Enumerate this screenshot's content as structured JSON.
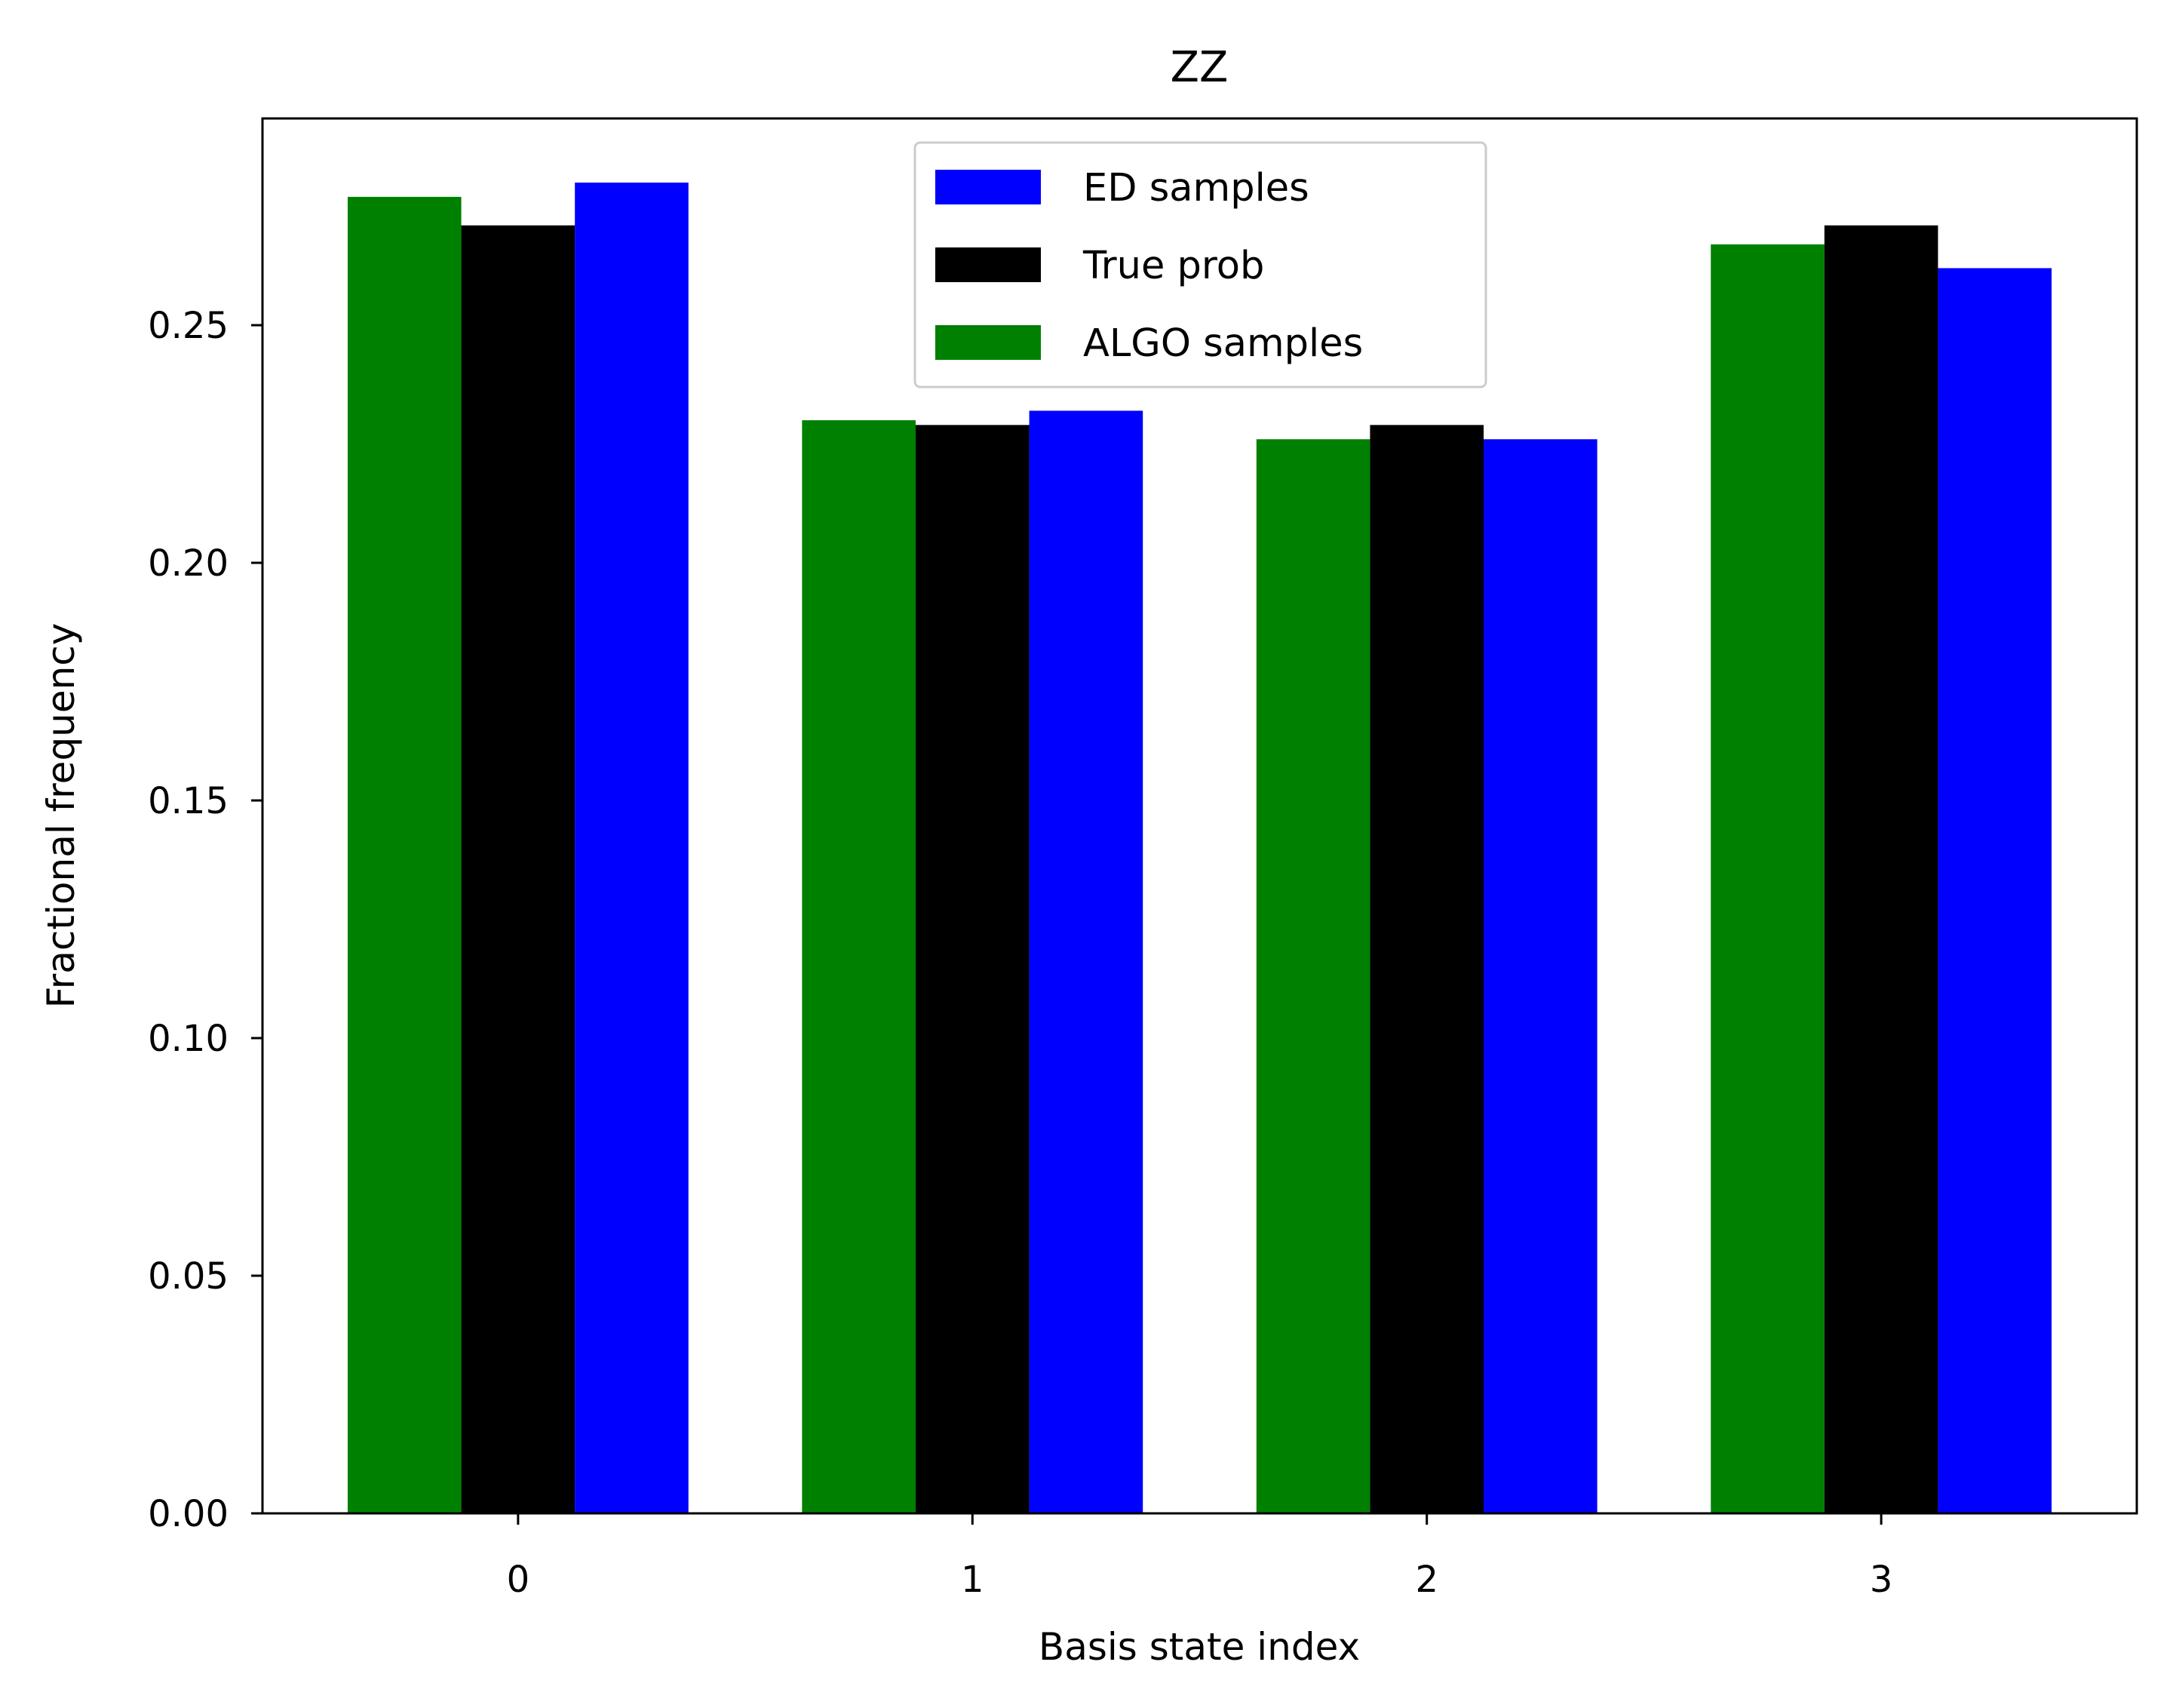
{
  "chart_data": {
    "type": "bar",
    "title": "ZZ",
    "xlabel": "Basis state index",
    "ylabel": "Fractional frequency",
    "categories": [
      "0",
      "1",
      "2",
      "3"
    ],
    "xlim": [
      -0.5625,
      3.5625
    ],
    "ylim": [
      0,
      0.2935
    ],
    "yticks": [
      0.0,
      0.05,
      0.1,
      0.15,
      0.2,
      0.25
    ],
    "ytick_labels": [
      "0.00",
      "0.05",
      "0.10",
      "0.15",
      "0.20",
      "0.25"
    ],
    "bar_width": 0.25,
    "series": [
      {
        "name": "ALGO samples",
        "color": "#008000",
        "offset": -0.25,
        "values": [
          0.277,
          0.23,
          0.226,
          0.267
        ]
      },
      {
        "name": "True prob",
        "color": "#000000",
        "offset": 0.0,
        "values": [
          0.271,
          0.229,
          0.229,
          0.271
        ]
      },
      {
        "name": "ED samples",
        "color": "#0000ff",
        "offset": 0.25,
        "values": [
          0.28,
          0.232,
          0.226,
          0.262
        ]
      }
    ],
    "legend": {
      "position": "upper-center",
      "entries": [
        {
          "label": "ED samples",
          "color": "#0000ff"
        },
        {
          "label": "True prob",
          "color": "#000000"
        },
        {
          "label": "ALGO samples",
          "color": "#008000"
        }
      ]
    },
    "grid": false
  }
}
